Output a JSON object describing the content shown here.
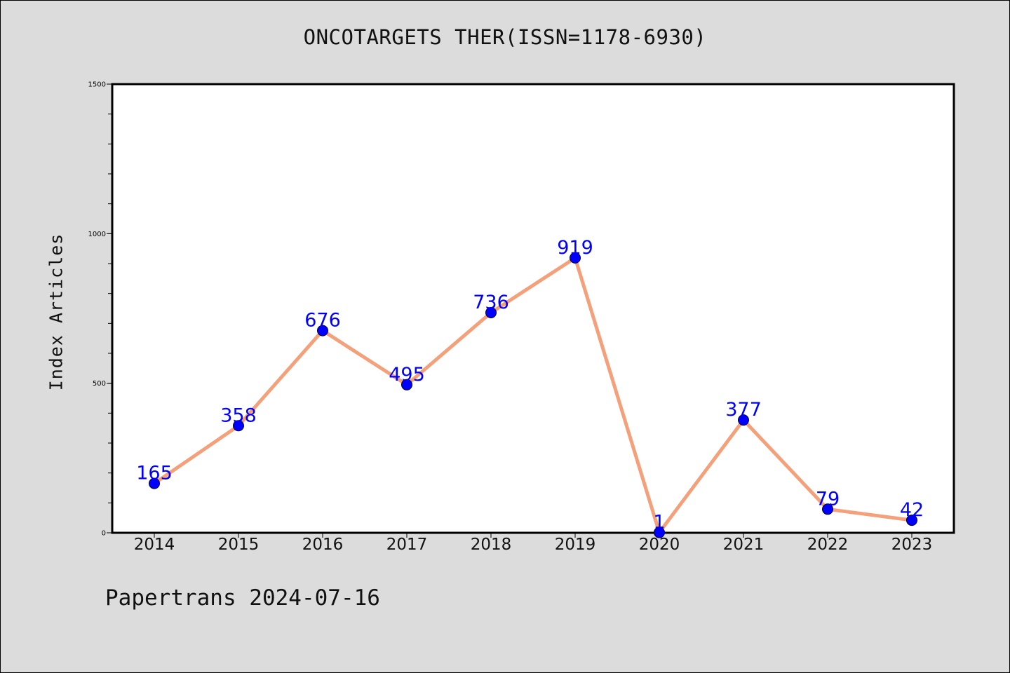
{
  "footer": "Papertrans 2024-07-16",
  "chart_data": {
    "type": "line",
    "title": "ONCOTARGETS THER(ISSN=1178-6930)",
    "xlabel": "",
    "ylabel": "Index Articles",
    "categories": [
      "2014",
      "2015",
      "2016",
      "2017",
      "2018",
      "2019",
      "2020",
      "2021",
      "2022",
      "2023"
    ],
    "values": [
      165,
      358,
      676,
      495,
      736,
      919,
      1,
      377,
      79,
      42
    ],
    "data_labels": [
      "165",
      "358",
      "676",
      "495",
      "736",
      "919",
      "1",
      "377",
      "79",
      "42"
    ],
    "ylim": [
      0,
      1500
    ],
    "y_ticks": [
      0,
      500,
      1000,
      1500
    ],
    "y_tick_labels": [
      "0",
      "500",
      "1000",
      "1500"
    ],
    "y_minor_step": 100,
    "grid": false,
    "colors": {
      "line": "#f4a07a",
      "marker": "#0000ff",
      "label": "#0000ff",
      "plot_background": "#ffffff",
      "page_background": "#dcdcdc"
    }
  }
}
